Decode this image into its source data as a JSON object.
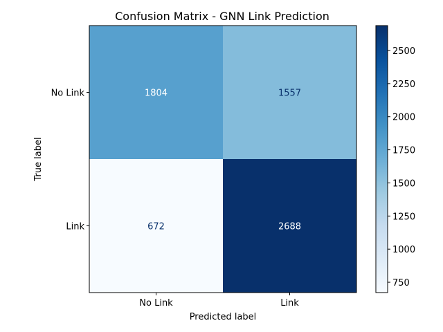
{
  "chart_data": {
    "type": "heatmap",
    "title": "Confusion Matrix - GNN Link Prediction",
    "xlabel": "Predicted label",
    "ylabel": "True label",
    "x_categories": [
      "No Link",
      "Link"
    ],
    "y_categories": [
      "No Link",
      "Link"
    ],
    "values": [
      [
        1804,
        1557
      ],
      [
        672,
        2688
      ]
    ],
    "colormap": "Blues",
    "color_range": [
      672,
      2688
    ],
    "colorbar": {
      "ticks": [
        750,
        1000,
        1250,
        1500,
        1750,
        2000,
        2250,
        2500
      ],
      "tick_labels": [
        "750",
        "1000",
        "1250",
        "1500",
        "1750",
        "2000",
        "2250",
        "2500"
      ]
    },
    "grid": false
  }
}
